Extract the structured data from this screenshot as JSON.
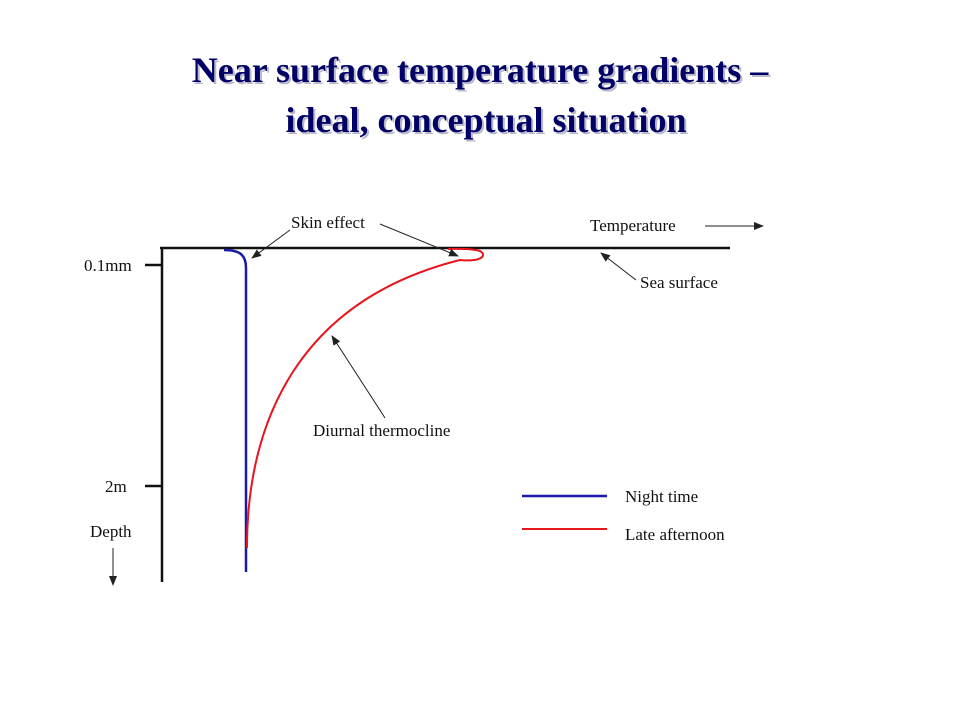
{
  "title": {
    "lines": [
      "Near surface temperature gradients –",
      "ideal, conceptual situation"
    ]
  },
  "labels": {
    "skin_effect": "Skin effect",
    "temperature": "Temperature",
    "sea_surface": "Sea surface",
    "diurnal_thermocline": "Diurnal thermocline"
  },
  "axis": {
    "depth_ticks": [
      "0.1mm",
      "2m"
    ],
    "depth_label": "Depth"
  },
  "legend": [
    {
      "name": "Night time",
      "color": "#1a1aa6"
    },
    {
      "name": "Late afternoon",
      "color": "#e8141e"
    }
  ]
}
